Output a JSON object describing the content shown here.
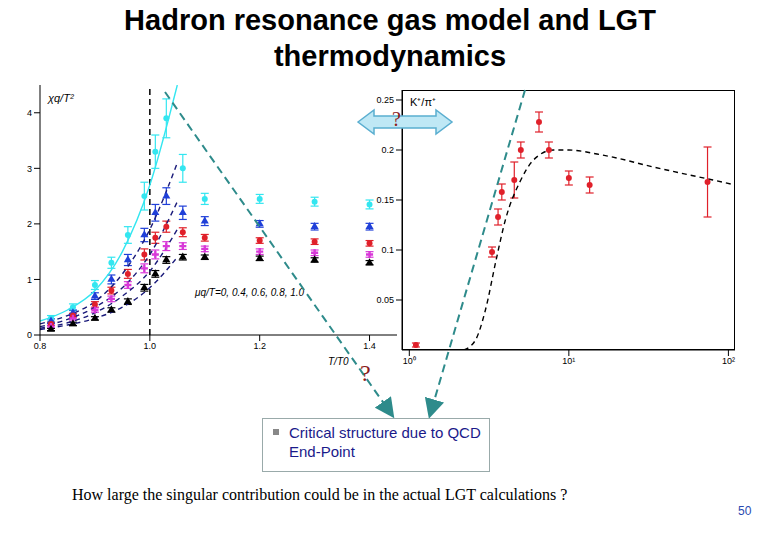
{
  "title": "Hadron resonance gas model and LGT thermodynamics",
  "question_marks": [
    "?",
    "?"
  ],
  "box_text": "Critical structure due to QCD End-Point",
  "caption": "How large the singular contribution could be in the actual LGT calculations ?",
  "page_number": 50,
  "chart_data": [
    {
      "type": "scatter",
      "y_label": "χq/T²",
      "x_label": "T/T0",
      "text": "μq/T=0, 0.4, 0.6, 0.8, 1.0",
      "xlim": [
        0.8,
        1.45
      ],
      "xticks": [
        {
          "value": 0.8,
          "label": "0.8"
        },
        {
          "value": 1.0,
          "label": "1.0"
        },
        {
          "value": 1.2,
          "label": "1.2"
        },
        {
          "value": 1.4,
          "label": "1.4"
        }
      ],
      "ylim": [
        0,
        4.5
      ],
      "yticks": [
        0,
        1,
        2,
        3,
        4
      ],
      "vlines": [
        1.0
      ],
      "series": [
        {
          "color": "#33e6f0",
          "marker": "circle",
          "x": [
            0.82,
            0.86,
            0.9,
            0.93,
            0.96,
            0.99,
            1.01,
            1.03,
            1.06,
            1.1,
            1.2,
            1.3,
            1.4
          ],
          "values": [
            0.3,
            0.5,
            0.9,
            1.3,
            1.8,
            2.5,
            3.3,
            3.9,
            3.0,
            2.45,
            2.45,
            2.4,
            2.35
          ],
          "errors": [
            0.05,
            0.06,
            0.08,
            0.1,
            0.15,
            0.25,
            0.3,
            0.35,
            0.25,
            0.1,
            0.08,
            0.08,
            0.08
          ]
        },
        {
          "color": "#1f3fd8",
          "marker": "triangle",
          "x": [
            0.82,
            0.86,
            0.9,
            0.93,
            0.96,
            0.99,
            1.01,
            1.03,
            1.06,
            1.1,
            1.2,
            1.3,
            1.4
          ],
          "values": [
            0.25,
            0.4,
            0.7,
            1.0,
            1.35,
            1.8,
            2.2,
            2.5,
            2.2,
            2.05,
            2.0,
            1.95,
            1.95
          ],
          "errors": [
            0.04,
            0.05,
            0.06,
            0.08,
            0.1,
            0.12,
            0.15,
            0.15,
            0.12,
            0.08,
            0.06,
            0.06,
            0.06
          ]
        },
        {
          "color": "#e0202a",
          "marker": "circle",
          "x": [
            0.82,
            0.86,
            0.9,
            0.93,
            0.96,
            0.99,
            1.01,
            1.03,
            1.06,
            1.1,
            1.2,
            1.3,
            1.4
          ],
          "values": [
            0.2,
            0.35,
            0.55,
            0.8,
            1.1,
            1.45,
            1.75,
            1.95,
            1.85,
            1.75,
            1.7,
            1.68,
            1.65
          ],
          "errors": [
            0.03,
            0.04,
            0.05,
            0.06,
            0.08,
            0.1,
            0.1,
            0.1,
            0.08,
            0.06,
            0.05,
            0.05,
            0.05
          ]
        },
        {
          "color": "#d838d8",
          "marker": "cross",
          "x": [
            0.82,
            0.86,
            0.9,
            0.93,
            0.96,
            0.99,
            1.01,
            1.03,
            1.06,
            1.1,
            1.2,
            1.3,
            1.4
          ],
          "values": [
            0.15,
            0.3,
            0.45,
            0.65,
            0.9,
            1.2,
            1.45,
            1.6,
            1.6,
            1.55,
            1.5,
            1.48,
            1.45
          ],
          "errors": [
            0.03,
            0.03,
            0.04,
            0.05,
            0.06,
            0.08,
            0.08,
            0.08,
            0.06,
            0.05,
            0.05,
            0.05,
            0.05
          ]
        },
        {
          "color": "#000000",
          "marker": "triangle",
          "x": [
            0.82,
            0.86,
            0.9,
            0.93,
            0.96,
            0.99,
            1.01,
            1.03,
            1.06,
            1.1,
            1.2,
            1.3,
            1.4
          ],
          "values": [
            0.1,
            0.2,
            0.3,
            0.45,
            0.6,
            0.85,
            1.1,
            1.35,
            1.4,
            1.4,
            1.38,
            1.35,
            1.3
          ],
          "errors": [
            0.02,
            0.03,
            0.03,
            0.04,
            0.05,
            0.06,
            0.06,
            0.06,
            0.05,
            0.04,
            0.04,
            0.04,
            0.04
          ]
        },
        {
          "type": "line",
          "color": "#33e6f0",
          "line_style": "solid",
          "marker": "none",
          "x": [
            0.8,
            0.85,
            0.9,
            0.95,
            1.0,
            1.05
          ],
          "values": [
            0.25,
            0.45,
            0.8,
            1.5,
            2.7,
            4.5
          ]
        },
        {
          "type": "line",
          "color": "#1a1a7a",
          "line_style": "dashed",
          "marker": "none",
          "x": [
            0.8,
            0.85,
            0.9,
            0.95,
            1.0,
            1.05
          ],
          "values": [
            0.2,
            0.35,
            0.6,
            1.1,
            1.9,
            3.1
          ]
        },
        {
          "type": "line",
          "color": "#1a1a7a",
          "line_style": "dashed",
          "marker": "none",
          "x": [
            0.8,
            0.85,
            0.9,
            0.95,
            1.0,
            1.05
          ],
          "values": [
            0.15,
            0.28,
            0.5,
            0.85,
            1.45,
            2.4
          ]
        },
        {
          "type": "line",
          "color": "#1a1a7a",
          "line_style": "dashed",
          "marker": "none",
          "x": [
            0.8,
            0.85,
            0.9,
            0.95,
            1.0,
            1.05
          ],
          "values": [
            0.12,
            0.22,
            0.4,
            0.7,
            1.15,
            1.9
          ]
        },
        {
          "type": "line",
          "color": "#1a1a7a",
          "line_style": "dashed",
          "marker": "none",
          "x": [
            0.8,
            0.85,
            0.9,
            0.95,
            1.0,
            1.05
          ],
          "values": [
            0.1,
            0.18,
            0.3,
            0.5,
            0.85,
            1.4
          ]
        }
      ]
    },
    {
      "type": "scatter",
      "y_label": "K⁺/π⁺",
      "log": "x",
      "xlim": [
        0.9,
        110
      ],
      "xticks": [
        {
          "value": 1,
          "label": "10⁰"
        },
        {
          "value": 10,
          "label": "10¹"
        },
        {
          "value": 100,
          "label": "10²"
        }
      ],
      "ylim": [
        0,
        0.26
      ],
      "yticks": [
        0.05,
        0.1,
        0.15,
        0.2,
        0.25
      ],
      "series": [
        {
          "color": "#e0202a",
          "marker": "circle",
          "x": [
            1.1,
            3.3,
            3.6,
            3.8,
            4.55,
            5.0,
            6.5,
            7.5,
            10,
            13.5,
            74
          ],
          "values": [
            0.005,
            0.098,
            0.133,
            0.158,
            0.17,
            0.2,
            0.228,
            0.2,
            0.172,
            0.165,
            0.168
          ],
          "errors": [
            0.002,
            0.005,
            0.008,
            0.008,
            0.018,
            0.008,
            0.01,
            0.008,
            0.007,
            0.008,
            0.035
          ]
        },
        {
          "type": "line",
          "color": "#000000",
          "line_style": "dashed",
          "marker": "none",
          "x": [
            2.2,
            2.6,
            3,
            3.5,
            4,
            5,
            6,
            8,
            10,
            15,
            20,
            30,
            50,
            80,
            110
          ],
          "values": [
            0,
            0.01,
            0.04,
            0.09,
            0.13,
            0.17,
            0.19,
            0.2,
            0.2,
            0.196,
            0.192,
            0.185,
            0.177,
            0.17,
            0.165
          ]
        }
      ]
    }
  ]
}
